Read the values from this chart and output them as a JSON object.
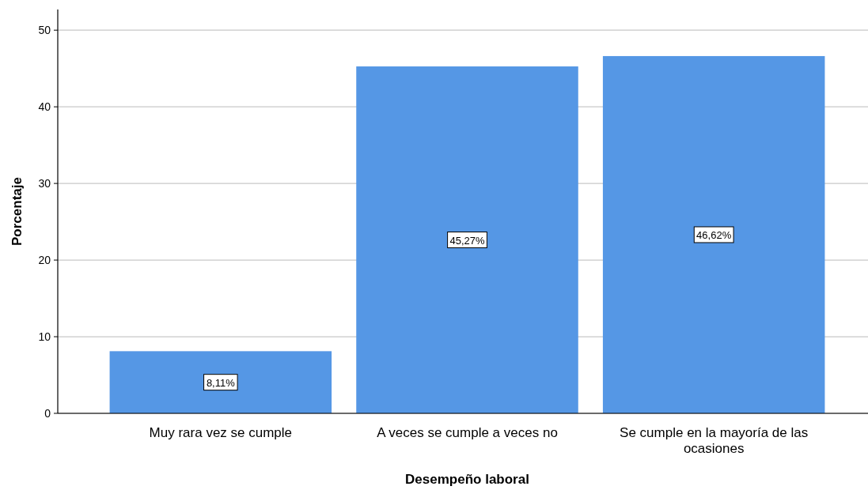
{
  "chart_data": {
    "type": "bar",
    "xlabel": "Desempeño laboral",
    "ylabel": "Porcentaje",
    "categories": [
      "Muy rara vez se cumple",
      "A veces se cumple a veces no",
      "Se cumple en la mayoría de las ocasiones"
    ],
    "values": [
      8.11,
      45.27,
      46.62
    ],
    "value_labels": [
      "8,11%",
      "45,27%",
      "46,62%"
    ],
    "color": "#5597e5",
    "ylim": [
      0,
      52.7
    ],
    "yticks": [
      0,
      10,
      20,
      30,
      40,
      50
    ],
    "grid": "y"
  }
}
